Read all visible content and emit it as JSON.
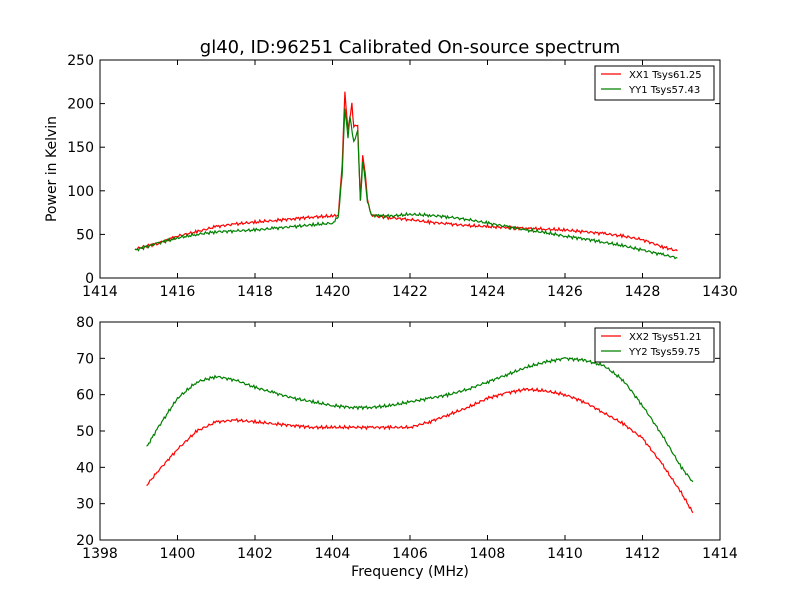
{
  "chart_data": [
    {
      "type": "line",
      "title": "gl40, ID:96251 Calibrated On-source spectrum",
      "xlabel": "",
      "ylabel": "Power in Kelvin",
      "xlim": [
        1414,
        1430
      ],
      "ylim": [
        0,
        250
      ],
      "xticks": [
        1414,
        1416,
        1418,
        1420,
        1422,
        1424,
        1426,
        1428,
        1430
      ],
      "yticks": [
        0,
        50,
        100,
        150,
        200,
        250
      ],
      "grid": false,
      "legend_position": "top-right",
      "series": [
        {
          "name": "XX1 Tsys61.25",
          "color": "#ff0000",
          "x": [
            1414.9,
            1415.5,
            1416,
            1416.5,
            1417,
            1417.5,
            1418,
            1418.5,
            1419,
            1419.5,
            1420,
            1420.15,
            1420.25,
            1420.32,
            1420.4,
            1420.5,
            1420.55,
            1420.65,
            1420.72,
            1420.78,
            1420.85,
            1420.9,
            1421,
            1421.5,
            1422,
            1422.5,
            1423,
            1423.5,
            1424,
            1424.5,
            1425,
            1425.5,
            1426,
            1426.5,
            1427,
            1427.5,
            1428,
            1428.5,
            1428.9
          ],
          "y": [
            33,
            40,
            48,
            53,
            59,
            62,
            64,
            66,
            68,
            70,
            71,
            72,
            130,
            212,
            170,
            200,
            175,
            175,
            90,
            140,
            118,
            90,
            72,
            69,
            67,
            64,
            62,
            60,
            59,
            58,
            57,
            56,
            55,
            53,
            51,
            48,
            44,
            36,
            31
          ]
        },
        {
          "name": "YY1 Tsys57.43",
          "color": "#008000",
          "x": [
            1414.9,
            1415.5,
            1416,
            1416.5,
            1417,
            1417.5,
            1418,
            1418.5,
            1419,
            1419.5,
            1420,
            1420.15,
            1420.25,
            1420.32,
            1420.4,
            1420.45,
            1420.55,
            1420.65,
            1420.72,
            1420.78,
            1420.85,
            1420.9,
            1421,
            1421.5,
            1422,
            1422.5,
            1423,
            1423.5,
            1424,
            1424.5,
            1425,
            1425.5,
            1426,
            1426.5,
            1427,
            1427.5,
            1428,
            1428.5,
            1428.9
          ],
          "y": [
            32,
            40,
            46,
            50,
            53,
            54,
            55,
            57,
            59,
            61,
            63,
            70,
            120,
            195,
            160,
            185,
            155,
            170,
            88,
            135,
            110,
            88,
            72,
            71,
            73,
            72,
            70,
            67,
            63,
            59,
            55,
            52,
            48,
            45,
            41,
            37,
            32,
            27,
            23
          ]
        }
      ]
    },
    {
      "type": "line",
      "title": "",
      "xlabel": "Frequency (MHz)",
      "ylabel": "",
      "xlim": [
        1398,
        1414
      ],
      "ylim": [
        20,
        80
      ],
      "xticks": [
        1398,
        1400,
        1402,
        1404,
        1406,
        1408,
        1410,
        1412,
        1414
      ],
      "yticks": [
        20,
        30,
        40,
        50,
        60,
        70,
        80
      ],
      "grid": false,
      "legend_position": "top-right",
      "series": [
        {
          "name": "XX2 Tsys51.21",
          "color": "#ff0000",
          "x": [
            1399.2,
            1399.5,
            1400,
            1400.5,
            1401,
            1401.5,
            1402,
            1402.5,
            1403,
            1403.5,
            1404,
            1404.5,
            1405,
            1405.5,
            1406,
            1406.5,
            1407,
            1407.5,
            1408,
            1408.5,
            1409,
            1409.5,
            1410,
            1410.5,
            1411,
            1411.5,
            1412,
            1412.5,
            1413,
            1413.3
          ],
          "y": [
            35,
            39,
            45,
            50,
            52.5,
            53,
            52.5,
            52,
            51.5,
            51,
            51,
            51,
            51,
            51,
            51,
            52.5,
            54.5,
            56.5,
            59,
            60.5,
            61.5,
            61,
            60,
            58,
            55,
            52,
            48,
            41,
            33,
            27.5
          ]
        },
        {
          "name": "YY2 Tsys59.75",
          "color": "#008000",
          "x": [
            1399.2,
            1399.5,
            1400,
            1400.5,
            1401,
            1401.5,
            1402,
            1402.5,
            1403,
            1403.5,
            1404,
            1404.5,
            1405,
            1405.5,
            1406,
            1406.5,
            1407,
            1407.5,
            1408,
            1408.5,
            1409,
            1409.5,
            1410,
            1410.5,
            1411,
            1411.5,
            1412,
            1412.5,
            1413,
            1413.3
          ],
          "y": [
            45.5,
            51,
            59,
            63.5,
            65,
            64,
            62,
            60.5,
            59,
            58,
            57,
            56.5,
            56.5,
            57,
            58,
            59,
            60,
            61.5,
            63.5,
            65.5,
            67.5,
            69,
            70,
            69.5,
            68,
            64,
            57,
            49,
            40,
            36
          ]
        }
      ]
    }
  ]
}
